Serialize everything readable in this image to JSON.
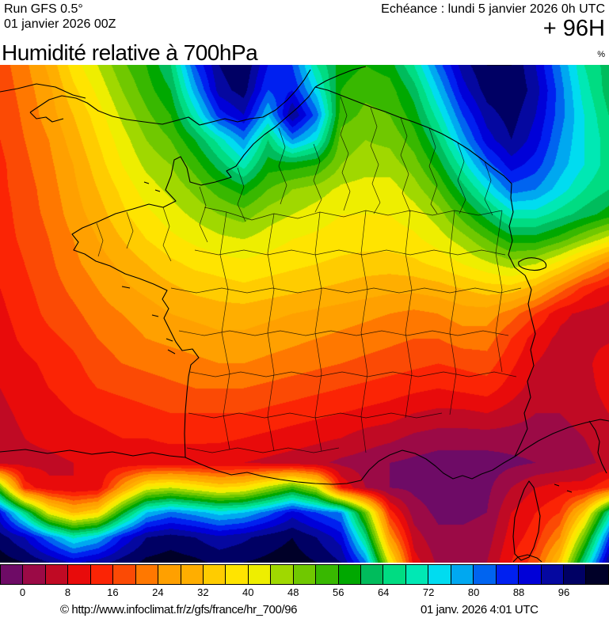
{
  "header": {
    "run_line1": "Run GFS 0.5°",
    "run_line2": "01 janvier 2026 00Z",
    "echeance": "Echéance : lundi 5 janvier 2026 0h UTC",
    "forecast_hour": "+ 96H"
  },
  "title": {
    "text": "Humidité relative à 700hPa",
    "unit": "%"
  },
  "footer": {
    "copyright": "© http://www.infoclimat.fr/z/gfs/france/hr_700/96",
    "datetime": "01 janv. 2026  4:01 UTC"
  },
  "colorbar": {
    "tick_labels": [
      "0",
      "8",
      "16",
      "24",
      "32",
      "40",
      "48",
      "56",
      "64",
      "72",
      "80",
      "88",
      "96"
    ],
    "colors": [
      "#6E0B66",
      "#9B0A46",
      "#C00A24",
      "#E80B0B",
      "#FB2405",
      "#FB4A05",
      "#FF7800",
      "#FFA000",
      "#FFAE00",
      "#FFCC00",
      "#FFE400",
      "#EEEE00",
      "#A0D800",
      "#70C800",
      "#38B800",
      "#00A800",
      "#00BC5C",
      "#00DC82",
      "#00E8B4",
      "#00DCF0",
      "#00A8F0",
      "#0064F0",
      "#0020F0",
      "#0000D8",
      "#0508A0",
      "#000064",
      "#000028"
    ]
  },
  "map_data": {
    "type": "heatmap",
    "units": "%",
    "band_step": 4,
    "cols": 26,
    "rows": 21,
    "values": [
      [
        22,
        27,
        33,
        42,
        48,
        55,
        60,
        68,
        88,
        100,
        104,
        92,
        88,
        72,
        62,
        60,
        62,
        72,
        86,
        98,
        104,
        104,
        96,
        84,
        72,
        66
      ],
      [
        21,
        26,
        31,
        39,
        45,
        52,
        58,
        64,
        82,
        98,
        102,
        88,
        92,
        78,
        60,
        57,
        58,
        66,
        80,
        94,
        102,
        104,
        98,
        86,
        74,
        66
      ],
      [
        20,
        25,
        30,
        36,
        42,
        49,
        55,
        60,
        74,
        90,
        96,
        80,
        100,
        86,
        58,
        55,
        56,
        62,
        74,
        88,
        98,
        102,
        96,
        86,
        76,
        68
      ],
      [
        20,
        24,
        28,
        34,
        40,
        46,
        52,
        56,
        64,
        74,
        84,
        68,
        84,
        76,
        54,
        52,
        53,
        58,
        68,
        82,
        94,
        100,
        94,
        84,
        76,
        70
      ],
      [
        19,
        23,
        27,
        32,
        38,
        44,
        49,
        52,
        58,
        66,
        74,
        62,
        62,
        60,
        52,
        50,
        50,
        54,
        62,
        74,
        86,
        94,
        90,
        82,
        76,
        70
      ],
      [
        19,
        22,
        26,
        31,
        36,
        41,
        46,
        49,
        53,
        58,
        62,
        56,
        52,
        50,
        47,
        46,
        46,
        50,
        56,
        66,
        76,
        86,
        84,
        78,
        72,
        68
      ],
      [
        18,
        22,
        25,
        30,
        34,
        39,
        43,
        46,
        49,
        52,
        54,
        50,
        48,
        46,
        44,
        44,
        44,
        46,
        50,
        58,
        66,
        74,
        74,
        70,
        66,
        62
      ],
      [
        18,
        21,
        24,
        28,
        32,
        36,
        40,
        43,
        45,
        47,
        48,
        46,
        44,
        43,
        42,
        42,
        42,
        43,
        46,
        50,
        56,
        62,
        62,
        58,
        52,
        46
      ],
      [
        17,
        20,
        23,
        27,
        30,
        33,
        36,
        39,
        41,
        42,
        43,
        42,
        41,
        40,
        39,
        38,
        38,
        39,
        41,
        44,
        47,
        50,
        48,
        42,
        34,
        26
      ],
      [
        16,
        19,
        22,
        25,
        28,
        31,
        33,
        35,
        37,
        38,
        39,
        38,
        37,
        36,
        35,
        34,
        33,
        33,
        34,
        36,
        38,
        38,
        34,
        26,
        18,
        14
      ],
      [
        15,
        18,
        21,
        23,
        26,
        28,
        30,
        32,
        33,
        34,
        34,
        33,
        32,
        31,
        30,
        29,
        28,
        27,
        28,
        30,
        30,
        26,
        20,
        13,
        11,
        10
      ],
      [
        14,
        17,
        19,
        21,
        24,
        26,
        28,
        29,
        30,
        31,
        31,
        30,
        29,
        28,
        27,
        26,
        25,
        24,
        24,
        26,
        26,
        20,
        14,
        11,
        10,
        11
      ],
      [
        13,
        15,
        17,
        19,
        22,
        24,
        25,
        26,
        27,
        28,
        28,
        27,
        26,
        25,
        24,
        23,
        22,
        21,
        20,
        21,
        22,
        17,
        12,
        10,
        10,
        16
      ],
      [
        12,
        14,
        16,
        18,
        20,
        21,
        22,
        23,
        24,
        24,
        24,
        23,
        22,
        21,
        20,
        19,
        18,
        17,
        16,
        17,
        18,
        14,
        10,
        9,
        10,
        14
      ],
      [
        11,
        13,
        14,
        16,
        17,
        18,
        19,
        20,
        20,
        20,
        20,
        19,
        18,
        17,
        16,
        15,
        14,
        12,
        11,
        11,
        12,
        10,
        8,
        8,
        9,
        12
      ],
      [
        10,
        12,
        13,
        14,
        15,
        16,
        16,
        17,
        17,
        17,
        16,
        15,
        14,
        13,
        12,
        10,
        9,
        7,
        6,
        6,
        6,
        6,
        6,
        7,
        8,
        10
      ],
      [
        10,
        11,
        11,
        12,
        13,
        13,
        13,
        13,
        13,
        12,
        12,
        11,
        10,
        9,
        7,
        6,
        4,
        3,
        2,
        2,
        2,
        3,
        4,
        5,
        7,
        9
      ],
      [
        55,
        18,
        13,
        12,
        13,
        30,
        45,
        48,
        44,
        40,
        42,
        50,
        58,
        48,
        16,
        8,
        4,
        3,
        2,
        2,
        3,
        8,
        12,
        14,
        14,
        20
      ],
      [
        92,
        70,
        45,
        35,
        40,
        62,
        80,
        85,
        82,
        78,
        80,
        86,
        94,
        88,
        84,
        55,
        18,
        6,
        3,
        3,
        4,
        12,
        16,
        20,
        38,
        70
      ],
      [
        102,
        96,
        85,
        75,
        80,
        92,
        100,
        102,
        100,
        97,
        99,
        102,
        104,
        100,
        94,
        70,
        30,
        10,
        5,
        5,
        6,
        14,
        18,
        28,
        55,
        88
      ],
      [
        106,
        104,
        100,
        95,
        98,
        102,
        105,
        106,
        105,
        103,
        104,
        105,
        106,
        104,
        100,
        85,
        45,
        14,
        7,
        7,
        8,
        16,
        22,
        38,
        70,
        100
      ]
    ]
  }
}
